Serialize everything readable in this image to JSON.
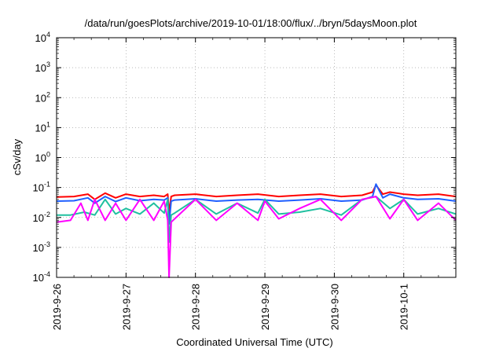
{
  "chart_data": {
    "type": "line",
    "title": "/data/run/goesPlots/archive/2019-10-01/18:00/flux/../bryn/5daysMoon.plot",
    "xlabel": "Coordinated Universal Time (UTC)",
    "ylabel": "cSv/day",
    "y_scale": "log",
    "ylim": [
      0.0001,
      10000
    ],
    "xlim": [
      "2019-09-26 00:00",
      "2019-10-01 18:00"
    ],
    "grid": true,
    "legend": "none",
    "x_ticks": [
      "2019-9-26",
      "2019-9-27",
      "2019-9-28",
      "2019-9-29",
      "2019-9-30",
      "2019-10-1"
    ],
    "y_ticks": [
      {
        "base": "10",
        "exp": "-4"
      },
      {
        "base": "10",
        "exp": "-3"
      },
      {
        "base": "10",
        "exp": "-2"
      },
      {
        "base": "10",
        "exp": "-1"
      },
      {
        "base": "10",
        "exp": "0"
      },
      {
        "base": "10",
        "exp": "1"
      },
      {
        "base": "10",
        "exp": "2"
      },
      {
        "base": "10",
        "exp": "3"
      },
      {
        "base": "10",
        "exp": "4"
      }
    ],
    "series": [
      {
        "color": "#ff0000",
        "x_days": [
          0.0,
          0.25,
          0.45,
          0.55,
          0.7,
          0.85,
          1.0,
          1.2,
          1.4,
          1.55,
          1.6,
          1.62,
          1.65,
          1.7,
          2.0,
          2.3,
          2.6,
          2.9,
          3.2,
          3.5,
          3.8,
          4.1,
          4.4,
          4.55,
          4.6,
          4.7,
          4.8,
          5.0,
          5.2,
          5.5,
          5.75
        ],
        "values": [
          0.048,
          0.05,
          0.06,
          0.04,
          0.065,
          0.045,
          0.06,
          0.05,
          0.055,
          0.05,
          0.06,
          0.015,
          0.05,
          0.055,
          0.06,
          0.05,
          0.055,
          0.06,
          0.05,
          0.055,
          0.06,
          0.05,
          0.055,
          0.07,
          0.12,
          0.06,
          0.07,
          0.06,
          0.055,
          0.06,
          0.05
        ]
      },
      {
        "color": "#1f5fff",
        "x_days": [
          0.0,
          0.25,
          0.45,
          0.55,
          0.7,
          0.85,
          1.0,
          1.2,
          1.4,
          1.55,
          1.6,
          1.62,
          1.65,
          1.7,
          2.0,
          2.3,
          2.6,
          2.9,
          3.2,
          3.5,
          3.8,
          4.1,
          4.4,
          4.55,
          4.6,
          4.7,
          4.8,
          5.0,
          5.2,
          5.5,
          5.75
        ],
        "values": [
          0.035,
          0.036,
          0.045,
          0.03,
          0.05,
          0.034,
          0.045,
          0.036,
          0.04,
          0.038,
          0.045,
          0.006,
          0.035,
          0.038,
          0.042,
          0.035,
          0.038,
          0.04,
          0.035,
          0.038,
          0.042,
          0.035,
          0.038,
          0.05,
          0.13,
          0.045,
          0.06,
          0.045,
          0.04,
          0.042,
          0.035
        ]
      },
      {
        "color": "#20c0a0",
        "x_days": [
          0.0,
          0.2,
          0.4,
          0.55,
          0.7,
          0.85,
          1.0,
          1.2,
          1.4,
          1.55,
          1.6,
          1.62,
          1.65,
          1.7,
          2.0,
          2.3,
          2.6,
          2.9,
          3.0,
          3.2,
          3.5,
          3.8,
          4.1,
          4.4,
          4.6,
          4.8,
          5.0,
          5.2,
          5.5,
          5.75
        ],
        "values": [
          0.012,
          0.012,
          0.015,
          0.012,
          0.04,
          0.013,
          0.02,
          0.013,
          0.03,
          0.014,
          0.04,
          0.0015,
          0.012,
          0.014,
          0.04,
          0.013,
          0.03,
          0.014,
          0.04,
          0.013,
          0.015,
          0.02,
          0.012,
          0.04,
          0.05,
          0.02,
          0.04,
          0.013,
          0.02,
          0.013
        ]
      },
      {
        "color": "#ff00ff",
        "x_days": [
          0.0,
          0.2,
          0.35,
          0.45,
          0.55,
          0.7,
          0.85,
          1.0,
          1.2,
          1.4,
          1.55,
          1.6,
          1.62,
          1.65,
          1.7,
          2.0,
          2.3,
          2.6,
          2.9,
          3.0,
          3.2,
          3.5,
          3.8,
          4.1,
          4.4,
          4.6,
          4.8,
          5.0,
          5.2,
          5.5,
          5.75
        ],
        "values": [
          0.007,
          0.008,
          0.03,
          0.008,
          0.04,
          0.008,
          0.03,
          0.008,
          0.04,
          0.008,
          0.035,
          0.008,
          0.0001,
          0.007,
          0.009,
          0.04,
          0.008,
          0.03,
          0.008,
          0.035,
          0.009,
          0.02,
          0.04,
          0.008,
          0.04,
          0.05,
          0.009,
          0.04,
          0.008,
          0.03,
          0.008
        ]
      }
    ]
  }
}
